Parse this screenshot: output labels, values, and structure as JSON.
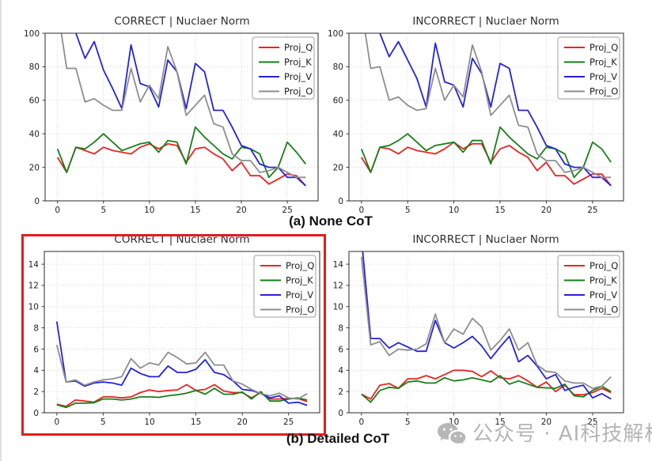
{
  "figure": {
    "captions": {
      "a": "(a) None CoT",
      "b": "(b) Detailed CoT"
    },
    "watermark": {
      "icon": "wechat-icon",
      "text": "公众号 · AI科技解析",
      "color": "#b5b5b5"
    },
    "highlight_color": "#e11d1d"
  },
  "chart_data": [
    {
      "id": "none-correct",
      "type": "line",
      "title": "CORRECT | Nuclaer Norm",
      "group_caption": "(a) None CoT",
      "grid": true,
      "legend_position": "upper right",
      "xlim": [
        -1.35,
        28.35
      ],
      "ylim": [
        0,
        100
      ],
      "xticks": [
        0,
        5,
        10,
        15,
        20,
        25
      ],
      "yticks": [
        0,
        20,
        40,
        60,
        80,
        100
      ],
      "x": [
        0,
        1,
        2,
        3,
        4,
        5,
        6,
        7,
        8,
        9,
        10,
        11,
        12,
        13,
        14,
        15,
        16,
        17,
        18,
        19,
        20,
        21,
        22,
        23,
        24,
        25,
        26,
        27
      ],
      "series": [
        {
          "name": "Proj_Q",
          "color": "#ea2323",
          "values": [
            26,
            17,
            32,
            30,
            28,
            32,
            30,
            29,
            28,
            32,
            34,
            31,
            34,
            33,
            23,
            31,
            32,
            28,
            25,
            18,
            23,
            15,
            15,
            10,
            13,
            16,
            15,
            9
          ]
        },
        {
          "name": "Proj_K",
          "color": "#168016",
          "values": [
            31,
            17,
            32,
            31,
            35,
            40,
            35,
            30,
            32,
            34,
            35,
            29,
            36,
            35,
            22,
            44,
            38,
            33,
            28,
            25,
            32,
            31,
            28,
            14,
            20,
            35,
            29,
            22
          ]
        },
        {
          "name": "Proj_V",
          "color": "#2222e0",
          "values": [
            120,
            110,
            100,
            85,
            95,
            78,
            67,
            55,
            93,
            70,
            68,
            56,
            84,
            77,
            55,
            82,
            77,
            54,
            54,
            44,
            33,
            31,
            22,
            20,
            20,
            14,
            14,
            9
          ]
        },
        {
          "name": "Proj_O",
          "color": "#8e8e8e",
          "values": [
            115,
            79,
            79,
            59,
            61,
            57,
            54,
            54,
            79,
            59,
            69,
            61,
            92,
            77,
            51,
            57,
            63,
            46,
            44,
            28,
            24,
            24,
            17,
            18,
            20,
            17,
            14,
            14
          ]
        }
      ]
    },
    {
      "id": "none-incorrect",
      "type": "line",
      "title": "INCORRECT | Nuclaer Norm",
      "group_caption": "(a) None CoT",
      "grid": true,
      "legend_position": "upper right",
      "xlim": [
        -1.35,
        28.35
      ],
      "ylim": [
        0,
        100
      ],
      "xticks": [
        0,
        5,
        10,
        15,
        20,
        25
      ],
      "yticks": [
        0,
        20,
        40,
        60,
        80,
        100
      ],
      "x": [
        0,
        1,
        2,
        3,
        4,
        5,
        6,
        7,
        8,
        9,
        10,
        11,
        12,
        13,
        14,
        15,
        16,
        17,
        18,
        19,
        20,
        21,
        22,
        23,
        24,
        25,
        26,
        27
      ],
      "series": [
        {
          "name": "Proj_Q",
          "color": "#ea2323",
          "values": [
            26,
            17,
            32,
            31,
            28,
            32,
            30,
            29,
            28,
            31,
            35,
            31,
            34,
            34,
            23,
            31,
            33,
            29,
            26,
            18,
            23,
            15,
            15,
            10,
            13,
            16,
            16,
            9
          ]
        },
        {
          "name": "Proj_K",
          "color": "#168016",
          "values": [
            31,
            17,
            32,
            33,
            36,
            40,
            35,
            30,
            33,
            34,
            35,
            29,
            36,
            36,
            22,
            44,
            38,
            33,
            28,
            25,
            32,
            31,
            28,
            14,
            20,
            35,
            31,
            23
          ]
        },
        {
          "name": "Proj_V",
          "color": "#2222e0",
          "values": [
            120,
            110,
            100,
            86,
            95,
            84,
            73,
            56,
            94,
            71,
            69,
            56,
            85,
            76,
            56,
            82,
            79,
            54,
            54,
            44,
            33,
            31,
            22,
            20,
            20,
            14,
            14,
            9
          ]
        },
        {
          "name": "Proj_O",
          "color": "#8e8e8e",
          "values": [
            115,
            79,
            80,
            60,
            62,
            57,
            54,
            55,
            79,
            60,
            69,
            62,
            93,
            77,
            51,
            57,
            63,
            45,
            44,
            28,
            24,
            24,
            17,
            18,
            20,
            17,
            14,
            14
          ]
        }
      ]
    },
    {
      "id": "detailed-correct",
      "type": "line",
      "title": "CORRECT | Nuclaer Norm",
      "group_caption": "(b) Detailed CoT",
      "highlighted": true,
      "grid": true,
      "legend_position": "upper right",
      "xlim": [
        -1.35,
        28.35
      ],
      "ylim": [
        0,
        15.2
      ],
      "xticks": [
        0,
        5,
        10,
        15,
        20,
        25
      ],
      "yticks": [
        0,
        2,
        4,
        6,
        8,
        10,
        12,
        14
      ],
      "x": [
        0,
        1,
        2,
        3,
        4,
        5,
        6,
        7,
        8,
        9,
        10,
        11,
        12,
        13,
        14,
        15,
        16,
        17,
        18,
        19,
        20,
        21,
        22,
        23,
        24,
        25,
        26,
        27
      ],
      "series": [
        {
          "name": "Proj_Q",
          "color": "#ea2323",
          "values": [
            0.8,
            0.6,
            1.2,
            1.1,
            1.0,
            1.5,
            1.5,
            1.4,
            1.5,
            1.9,
            2.15,
            2.0,
            2.1,
            2.15,
            2.65,
            2.1,
            2.2,
            2.65,
            2.05,
            1.9,
            1.9,
            1.4,
            1.9,
            1.3,
            1.3,
            1.35,
            1.35,
            1.05
          ]
        },
        {
          "name": "Proj_K",
          "color": "#168016",
          "values": [
            0.75,
            0.5,
            0.9,
            0.9,
            0.95,
            1.3,
            1.3,
            1.2,
            1.3,
            1.5,
            1.5,
            1.45,
            1.6,
            1.7,
            1.85,
            2.1,
            1.75,
            2.3,
            1.75,
            1.75,
            1.95,
            1.3,
            2.0,
            1.1,
            1.1,
            1.3,
            1.4,
            1.2
          ]
        },
        {
          "name": "Proj_V",
          "color": "#2222e0",
          "values": [
            8.6,
            2.9,
            3.0,
            2.5,
            2.8,
            2.9,
            2.8,
            2.6,
            4.2,
            3.7,
            3.4,
            3.4,
            4.4,
            3.8,
            3.8,
            4.1,
            5.0,
            3.8,
            3.6,
            3.0,
            2.2,
            2.1,
            1.8,
            1.4,
            1.6,
            0.9,
            1.0,
            0.7
          ]
        },
        {
          "name": "Proj_O",
          "color": "#8e8e8e",
          "values": [
            6.4,
            2.9,
            3.1,
            2.6,
            2.9,
            3.1,
            3.2,
            3.4,
            5.1,
            4.2,
            4.7,
            4.5,
            5.7,
            5.2,
            4.6,
            4.7,
            5.7,
            4.5,
            4.5,
            3.0,
            2.7,
            2.2,
            1.8,
            1.6,
            1.85,
            1.4,
            1.3,
            1.8
          ]
        }
      ]
    },
    {
      "id": "detailed-incorrect",
      "type": "line",
      "title": "INCORRECT | Nuclaer Norm",
      "group_caption": "(b) Detailed CoT",
      "grid": true,
      "legend_position": "upper right",
      "xlim": [
        -1.35,
        28.35
      ],
      "ylim": [
        0,
        15.2
      ],
      "xticks": [
        0,
        5,
        10,
        15,
        20,
        25
      ],
      "yticks": [
        0,
        2,
        4,
        6,
        8,
        10,
        12,
        14
      ],
      "x": [
        0,
        1,
        2,
        3,
        4,
        5,
        6,
        7,
        8,
        9,
        10,
        11,
        12,
        13,
        14,
        15,
        16,
        17,
        18,
        19,
        20,
        21,
        22,
        23,
        24,
        25,
        26,
        27
      ],
      "series": [
        {
          "name": "Proj_Q",
          "color": "#ea2323",
          "values": [
            1.75,
            1.3,
            2.6,
            2.75,
            2.3,
            3.2,
            3.2,
            3.5,
            3.2,
            3.6,
            4.0,
            4.0,
            3.9,
            3.4,
            3.95,
            3.3,
            3.2,
            3.5,
            3.0,
            2.4,
            2.9,
            2.0,
            2.6,
            1.7,
            1.7,
            1.9,
            2.3,
            1.9
          ]
        },
        {
          "name": "Proj_K",
          "color": "#168016",
          "values": [
            1.75,
            1.0,
            2.1,
            2.4,
            2.3,
            2.9,
            3.0,
            2.8,
            2.8,
            3.3,
            3.0,
            3.1,
            3.3,
            3.1,
            2.9,
            3.5,
            2.7,
            3.0,
            2.7,
            2.4,
            2.35,
            2.3,
            2.7,
            1.6,
            1.5,
            2.1,
            2.5,
            2.0
          ]
        },
        {
          "name": "Proj_V",
          "color": "#2222e0",
          "values": [
            16.5,
            7.0,
            7.0,
            6.1,
            6.6,
            6.2,
            5.8,
            5.8,
            8.7,
            6.6,
            6.1,
            6.6,
            7.2,
            6.3,
            5.1,
            6.2,
            7.2,
            4.8,
            5.4,
            4.4,
            3.2,
            3.6,
            2.1,
            2.4,
            2.6,
            1.4,
            1.8,
            1.3
          ]
        },
        {
          "name": "Proj_O",
          "color": "#8e8e8e",
          "values": [
            14.7,
            6.4,
            6.7,
            5.4,
            6.0,
            5.9,
            6.0,
            6.5,
            9.3,
            6.6,
            7.9,
            7.4,
            8.9,
            8.1,
            5.9,
            6.8,
            7.9,
            5.9,
            6.6,
            4.5,
            3.9,
            3.8,
            3.0,
            2.8,
            2.8,
            2.3,
            2.5,
            3.4
          ]
        }
      ]
    }
  ]
}
